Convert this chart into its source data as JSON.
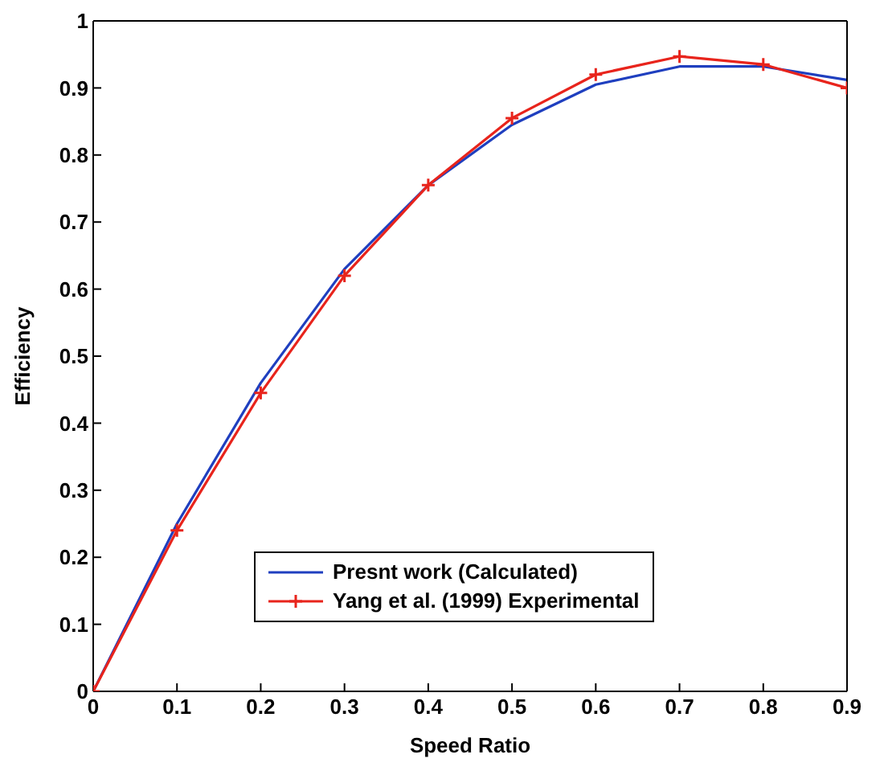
{
  "chart_data": {
    "type": "line",
    "xlabel": "Speed Ratio",
    "ylabel": "Efficiency",
    "x": [
      0,
      0.1,
      0.2,
      0.3,
      0.4,
      0.5,
      0.6,
      0.7,
      0.8,
      0.9
    ],
    "series": [
      {
        "name": "Presnt work (Calculated)",
        "color": "#1f3fbf",
        "marker": "none",
        "values": [
          0,
          0.25,
          0.46,
          0.63,
          0.755,
          0.845,
          0.905,
          0.932,
          0.932,
          0.912
        ]
      },
      {
        "name": "Yang et al. (1999) Experimental",
        "color": "#e8241c",
        "marker": "cross",
        "values": [
          0,
          0.24,
          0.445,
          0.62,
          0.755,
          0.855,
          0.92,
          0.947,
          0.935,
          0.9
        ]
      }
    ],
    "xlim": [
      0,
      0.9
    ],
    "xticks": [
      0,
      0.1,
      0.2,
      0.3,
      0.4,
      0.5,
      0.6,
      0.7,
      0.8,
      0.9
    ],
    "ylim": [
      0,
      1
    ],
    "yticks": [
      0,
      0.1,
      0.2,
      0.3,
      0.4,
      0.5,
      0.6,
      0.7,
      0.8,
      0.9,
      1
    ],
    "grid": false,
    "legend": "bottom",
    "line_style": "solid"
  }
}
